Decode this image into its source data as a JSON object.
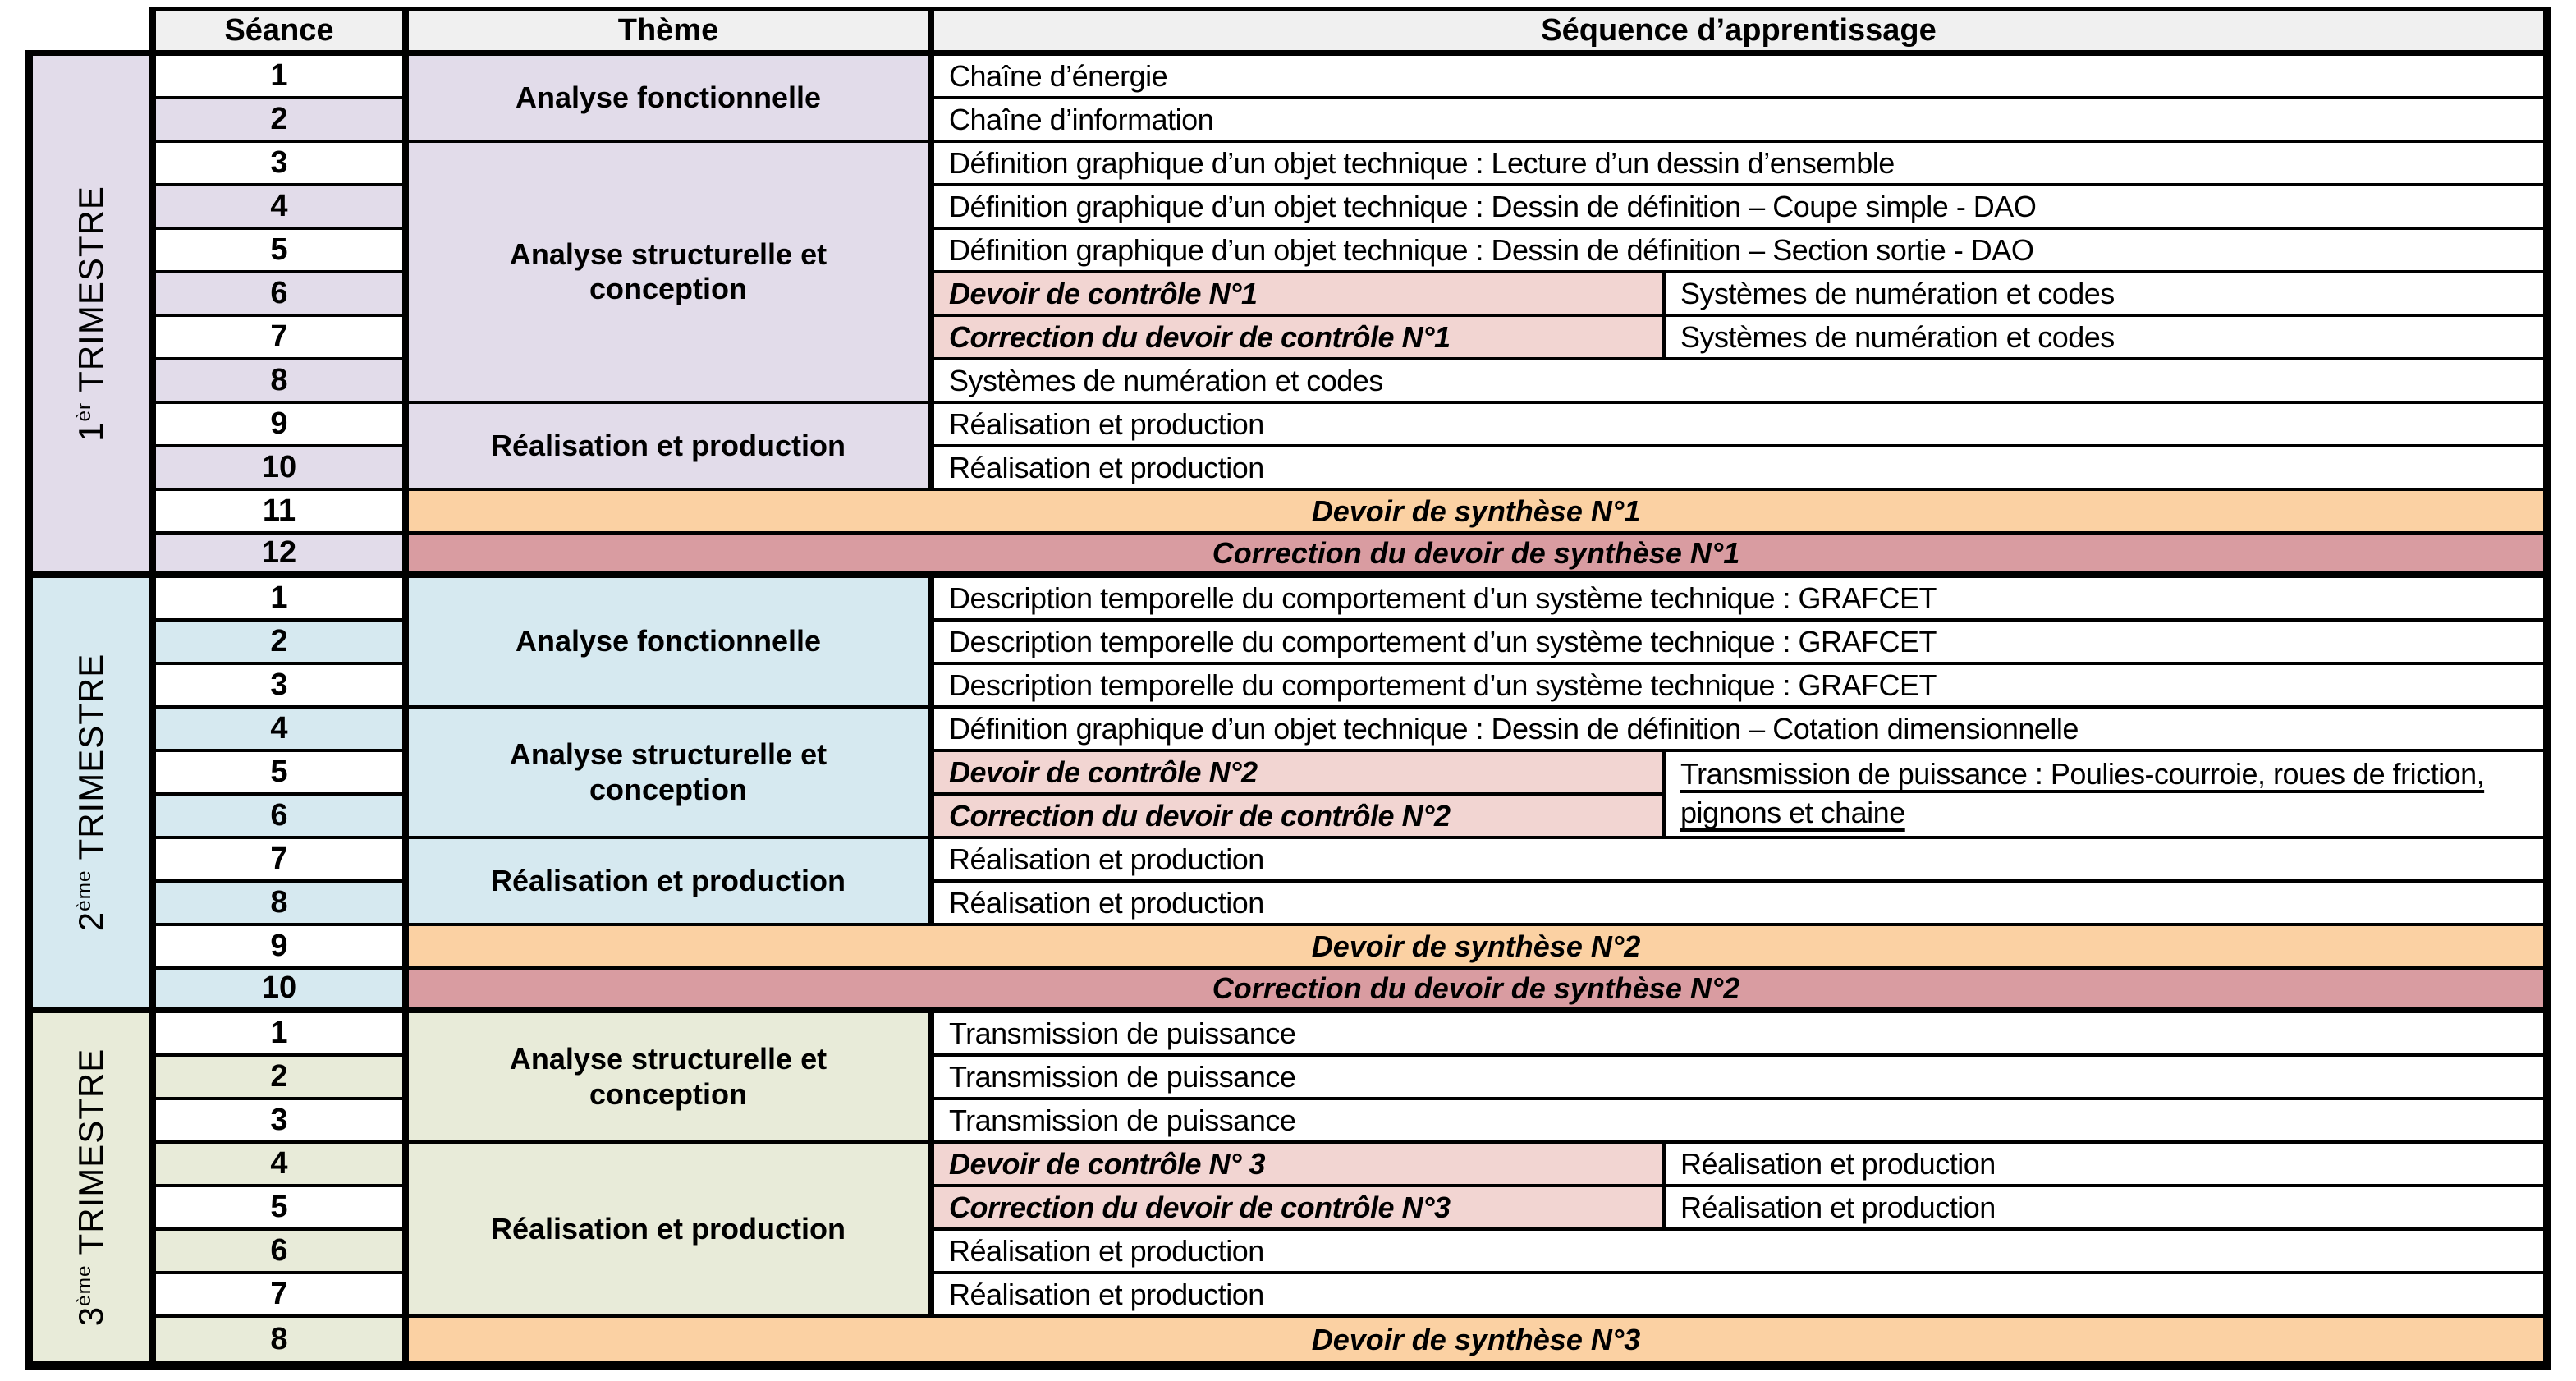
{
  "header": {
    "seance": "Séance",
    "theme": "Thème",
    "sequence": "Séquence d’apprentissage"
  },
  "colors": {
    "border": "#000000",
    "header_bg": "#F0F0F0",
    "trimester1_tint": "#E2DCEA",
    "trimester2_tint": "#D6E9F0",
    "trimester3_tint": "#E8EBD9",
    "control_pink": "#F2D5D2",
    "synthese_orange": "#FBD1A3",
    "correction_rose": "#D99CA1",
    "row_white": "#FFFFFF"
  },
  "trimesters": [
    {
      "label": {
        "num": "1",
        "sup": "èr",
        "word": "TRIMESTRE"
      },
      "tint": "#E2DCEA",
      "seances": [
        "1",
        "2",
        "3",
        "4",
        "5",
        "6",
        "7",
        "8",
        "9",
        "10",
        "11",
        "12"
      ],
      "themes": [
        {
          "label": "Analyse fonctionnelle",
          "from": 0,
          "span": 2
        },
        {
          "label": "Analyse structurelle et conception",
          "from": 2,
          "span": 6
        },
        {
          "label": "Réalisation et production",
          "from": 8,
          "span": 2
        }
      ],
      "sequences": [
        {
          "kind": "full",
          "row": 0,
          "text": "Chaîne d’énergie"
        },
        {
          "kind": "full",
          "row": 1,
          "text": "Chaîne d’information"
        },
        {
          "kind": "full",
          "row": 2,
          "text": "Définition graphique d’un objet technique : Lecture d’un dessin d’ensemble"
        },
        {
          "kind": "full",
          "row": 3,
          "text": "Définition graphique d’un objet technique : Dessin de définition – Coupe simple - DAO"
        },
        {
          "kind": "full",
          "row": 4,
          "text": "Définition graphique d’un objet technique : Dessin de définition – Section sortie - DAO"
        },
        {
          "kind": "split",
          "row": 5,
          "left": "Devoir de contrôle N°1",
          "right": "Systèmes de numération et codes"
        },
        {
          "kind": "split",
          "row": 6,
          "left": "Correction du devoir de contrôle N°1",
          "right": "Systèmes de numération et codes"
        },
        {
          "kind": "full",
          "row": 7,
          "text": "Systèmes de numération et codes"
        },
        {
          "kind": "full",
          "row": 8,
          "text": "Réalisation et production"
        },
        {
          "kind": "full",
          "row": 9,
          "text": "Réalisation et production"
        },
        {
          "kind": "bar",
          "row": 10,
          "style": "synthese",
          "text": "Devoir de synthèse N°1"
        },
        {
          "kind": "bar",
          "row": 11,
          "style": "correction",
          "text": "Correction du devoir de synthèse N°1"
        }
      ]
    },
    {
      "label": {
        "num": "2",
        "sup": "ème",
        "word": "TRIMESTRE"
      },
      "tint": "#D6E9F0",
      "seances": [
        "1",
        "2",
        "3",
        "4",
        "5",
        "6",
        "7",
        "8",
        "9",
        "10"
      ],
      "themes": [
        {
          "label": "Analyse fonctionnelle",
          "from": 0,
          "span": 3
        },
        {
          "label": "Analyse structurelle et conception",
          "from": 3,
          "span": 3
        },
        {
          "label": "Réalisation et production",
          "from": 6,
          "span": 2
        }
      ],
      "sequences": [
        {
          "kind": "full",
          "row": 0,
          "text": "Description temporelle du comportement d’un système technique : GRAFCET"
        },
        {
          "kind": "full",
          "row": 1,
          "text": "Description temporelle du comportement d’un système technique : GRAFCET"
        },
        {
          "kind": "full",
          "row": 2,
          "text": "Description temporelle du comportement d’un système technique : GRAFCET"
        },
        {
          "kind": "full",
          "row": 3,
          "text": "Définition graphique d’un objet technique : Dessin de définition – Cotation dimensionnelle"
        },
        {
          "kind": "split",
          "row": 4,
          "left": "Devoir de contrôle N°2",
          "right": "Transmission de puissance : Poulies-courroie, roues de friction, pignons et chaine",
          "rightSpan": 2,
          "rightUnderline": true
        },
        {
          "kind": "split",
          "row": 5,
          "left": "Correction du devoir de contrôle N°2"
        },
        {
          "kind": "full",
          "row": 6,
          "text": "Réalisation et production"
        },
        {
          "kind": "full",
          "row": 7,
          "text": "Réalisation et production"
        },
        {
          "kind": "bar",
          "row": 8,
          "style": "synthese",
          "text": "Devoir de synthèse N°2"
        },
        {
          "kind": "bar",
          "row": 9,
          "style": "correction",
          "text": "Correction du devoir de synthèse N°2"
        }
      ]
    },
    {
      "label": {
        "num": "3",
        "sup": "ème",
        "word": "TRIMESTRE"
      },
      "tint": "#E8EBD9",
      "seances": [
        "1",
        "2",
        "3",
        "4",
        "5",
        "6",
        "7",
        "8"
      ],
      "themes": [
        {
          "label": "Analyse structurelle et conception",
          "from": 0,
          "span": 3
        },
        {
          "label": "Réalisation et production",
          "from": 3,
          "span": 4
        }
      ],
      "sequences": [
        {
          "kind": "full",
          "row": 0,
          "text": "Transmission de puissance"
        },
        {
          "kind": "full",
          "row": 1,
          "text": "Transmission de puissance"
        },
        {
          "kind": "full",
          "row": 2,
          "text": "Transmission de puissance"
        },
        {
          "kind": "split",
          "row": 3,
          "left": "Devoir de contrôle N° 3",
          "right": "Réalisation et production"
        },
        {
          "kind": "split",
          "row": 4,
          "left": "Correction du devoir de contrôle N°3",
          "right": "Réalisation et production"
        },
        {
          "kind": "full",
          "row": 5,
          "text": "Réalisation et production"
        },
        {
          "kind": "full",
          "row": 6,
          "text": "Réalisation et production"
        },
        {
          "kind": "bar",
          "row": 7,
          "style": "synthese",
          "text": "Devoir de synthèse N°3"
        }
      ]
    }
  ]
}
